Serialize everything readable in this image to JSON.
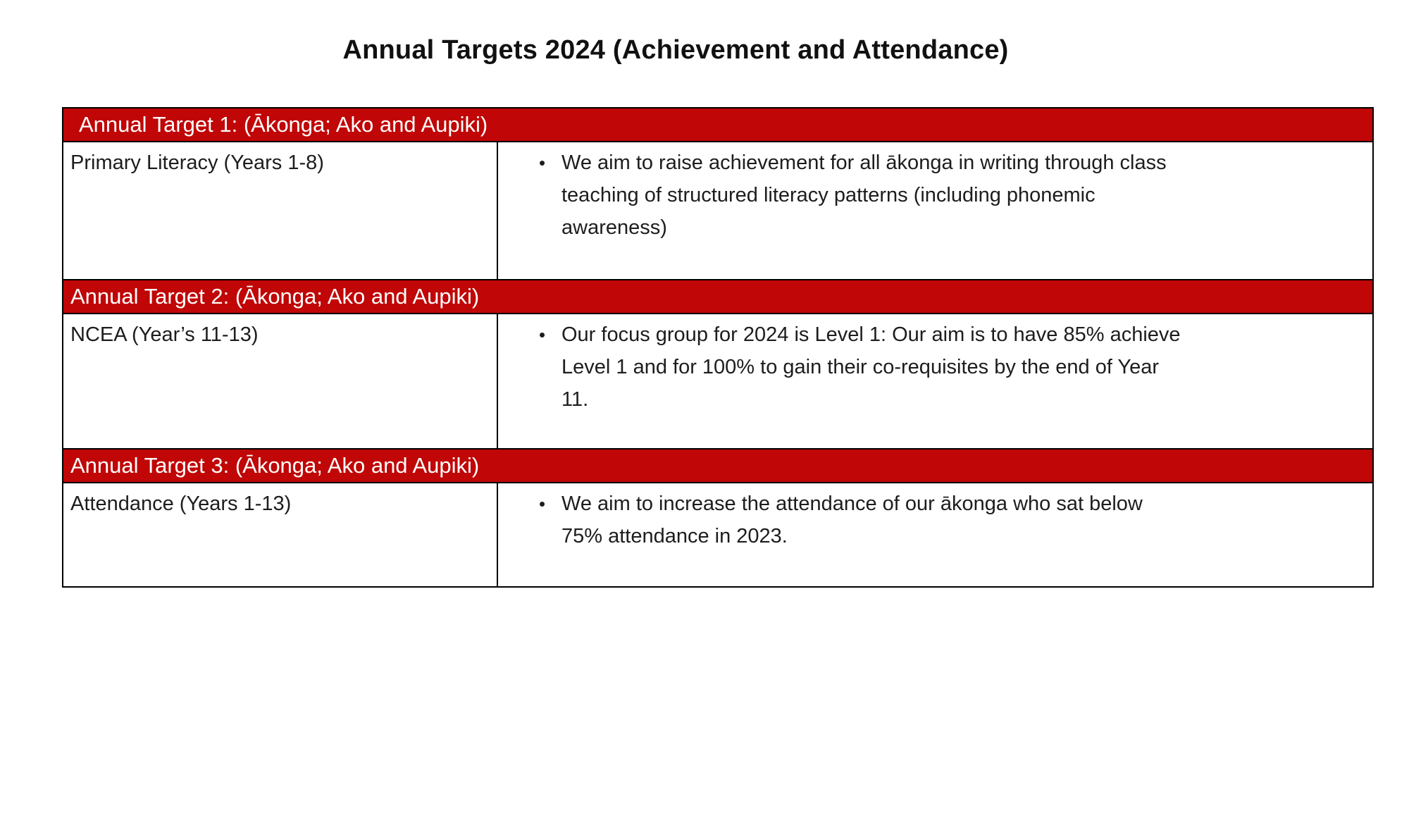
{
  "page": {
    "title": "Annual Targets 2024 (Achievement and Attendance)"
  },
  "colors": {
    "header_background": "#C00606",
    "header_text": "#FFFFFF",
    "body_text": "#1D1D1D",
    "border": "#000000"
  },
  "table": {
    "bullet_char": "•",
    "sections": [
      {
        "header": "Annual Target 1: (Ākonga; Ako and Aupiki)",
        "label": "Primary Literacy (Years 1-8)",
        "bullet_lines": [
          "We aim to raise achievement for all ākonga in writing through class",
          "teaching of structured literacy patterns (including phonemic",
          "awareness)"
        ]
      },
      {
        "header": "Annual Target 2: (Ākonga; Ako and Aupiki)",
        "label": "NCEA (Year’s 11-13)",
        "bullet_lines": [
          "Our focus group for 2024 is Level 1: Our aim is to have 85% achieve",
          "Level 1 and for 100% to gain their co-requisites by the end of Year",
          "11."
        ]
      },
      {
        "header": "Annual Target 3: (Ākonga; Ako and Aupiki)",
        "label": "Attendance (Years 1-13)",
        "bullet_lines": [
          "We aim to increase the attendance of our ākonga who sat below",
          "75% attendance in 2023."
        ]
      }
    ]
  }
}
